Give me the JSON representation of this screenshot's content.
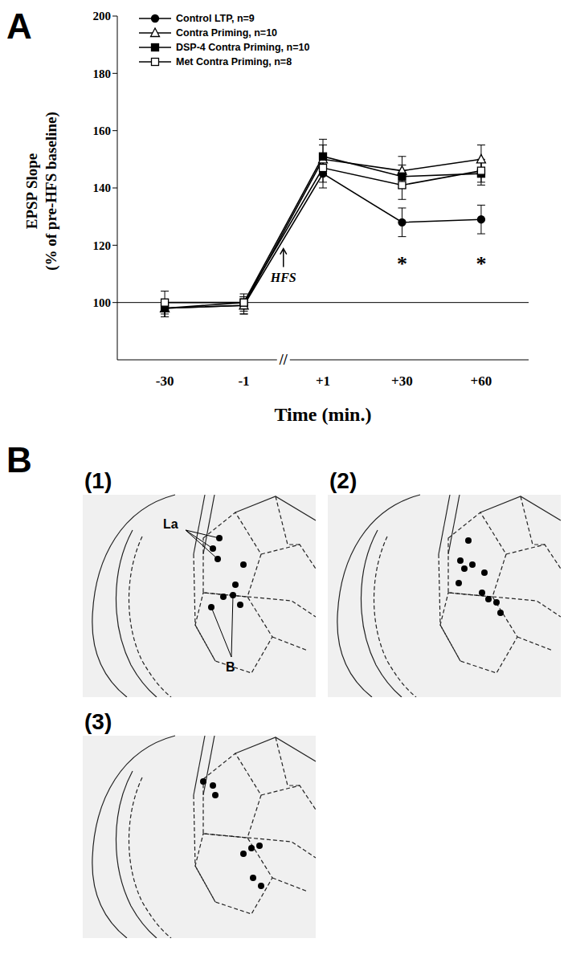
{
  "panel_label": "A",
  "chart_data": {
    "type": "line",
    "x_label": "Time (min.)",
    "y_label": [
      "EPSP Slope",
      "(% of pre-HFS baseline)"
    ],
    "categories": [
      "-30",
      "-1",
      "+1",
      "+30",
      "+60"
    ],
    "ylim": [
      80,
      200
    ],
    "yticks": [
      100,
      120,
      140,
      160,
      180,
      200
    ],
    "baseline": 100,
    "x_break": {
      "text": "//",
      "between": [
        "-1",
        "+1"
      ]
    },
    "legend": "upper left",
    "series": [
      {
        "name": "Control LTP, n=9",
        "color": "#000000",
        "marker": "circle",
        "values": [
          98,
          99,
          145,
          128,
          129
        ],
        "errors": [
          3,
          3,
          5,
          5,
          5
        ]
      },
      {
        "name": "Contra Priming, n=10",
        "color": "#000000",
        "marker": "triangle_open",
        "values": [
          98,
          99,
          150,
          146,
          150
        ],
        "errors": [
          3,
          3,
          5,
          5,
          5
        ]
      },
      {
        "name": "DSP-4 Contra Priming, n=10",
        "color": "#000000",
        "marker": "square",
        "values": [
          98,
          100,
          151,
          144,
          145
        ],
        "errors": [
          3,
          2,
          6,
          4,
          4
        ]
      },
      {
        "name": "Met Contra Priming, n=8",
        "color": "#000000",
        "marker": "square_open",
        "values": [
          100,
          100,
          147,
          141,
          146
        ],
        "errors": [
          4,
          3,
          5,
          5,
          4
        ]
      }
    ],
    "annotations": [
      {
        "text": "HFS",
        "between": [
          "-1",
          "+1"
        ],
        "y": 109
      },
      {
        "text": "*",
        "x": "+30",
        "y": 114
      },
      {
        "text": "*",
        "x": "+60",
        "y": 114
      }
    ]
  },
  "panel_b": {
    "label": "B",
    "panels": [
      {
        "label": "(1)",
        "regions": [
          "La",
          "B"
        ]
      },
      {
        "label": "(2)"
      },
      {
        "label": "(3)"
      }
    ]
  }
}
